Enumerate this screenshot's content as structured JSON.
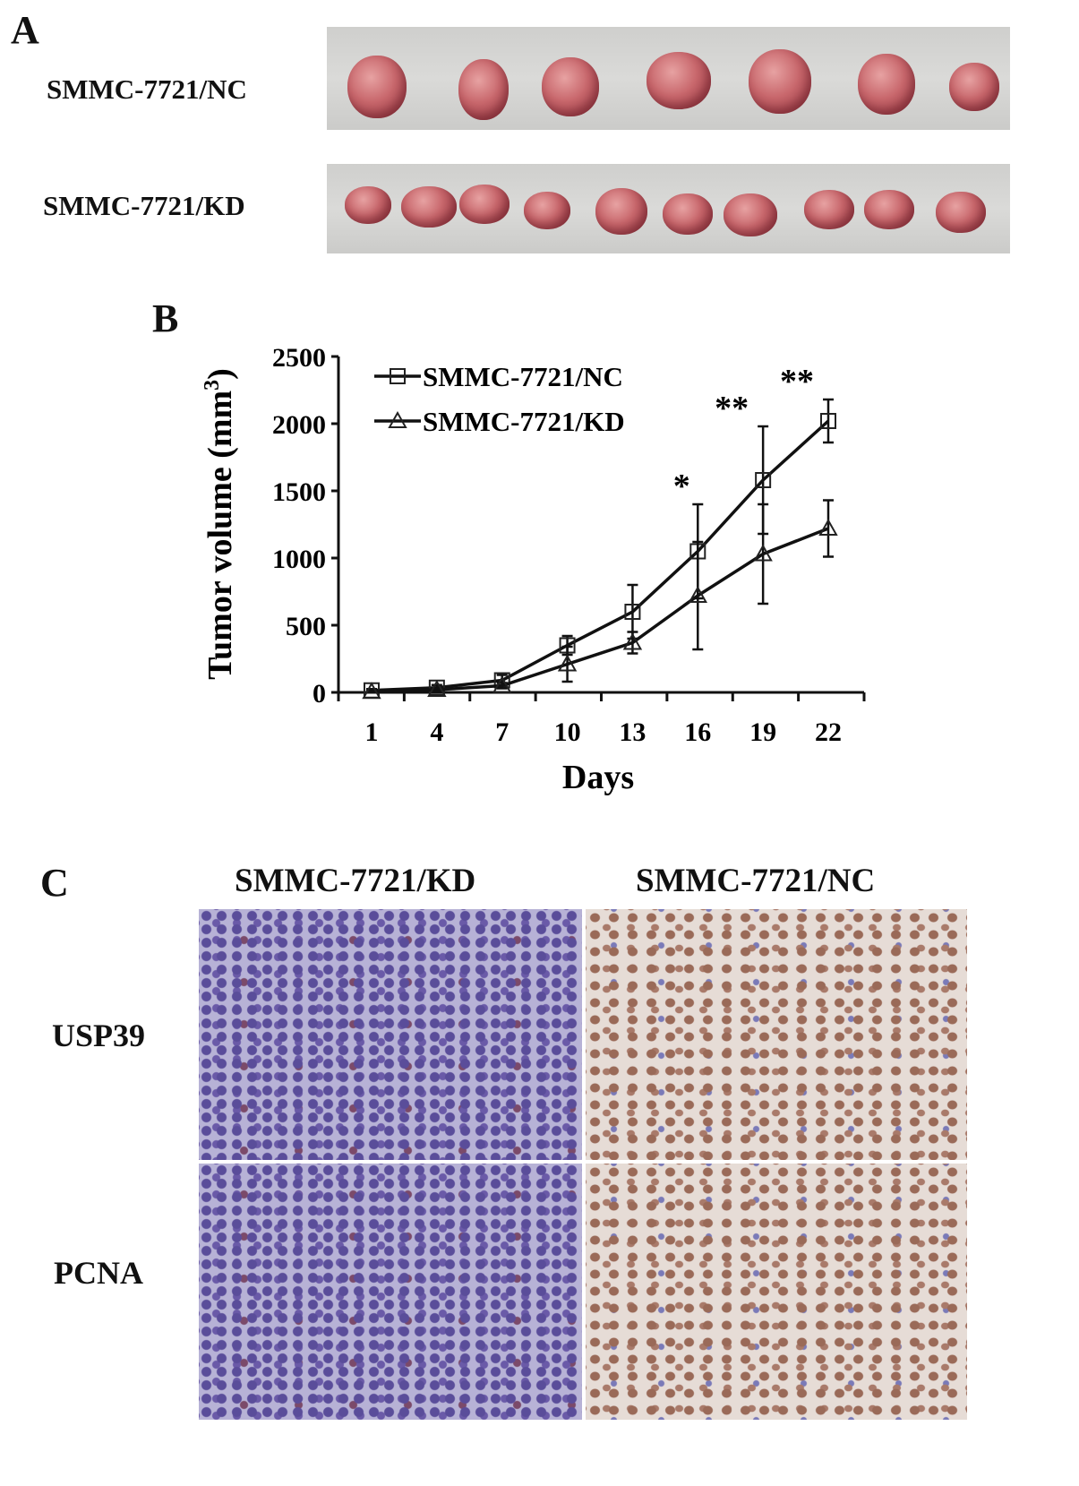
{
  "panels": {
    "a": {
      "label": "A",
      "rows": [
        "SMMC-7721/NC",
        "SMMC-7721/KD"
      ],
      "tumor_counts": [
        7,
        10
      ]
    },
    "b": {
      "label": "B"
    },
    "c": {
      "label": "C",
      "columns": [
        "SMMC-7721/KD",
        "SMMC-7721/NC"
      ],
      "rows": [
        "USP39",
        "PCNA"
      ]
    }
  },
  "chart_data": {
    "type": "line",
    "title": "",
    "xlabel": "Days",
    "ylabel": "Tumor volume (mm3)",
    "ylabel_main": "Tumor volume (mm",
    "ylabel_sup": "3",
    "ylabel_close": ")",
    "x": [
      1,
      4,
      7,
      10,
      13,
      16,
      19,
      22
    ],
    "xticks": [
      "1",
      "4",
      "7",
      "10",
      "13",
      "16",
      "19",
      "22"
    ],
    "ylim": [
      0,
      2500
    ],
    "yticks": [
      "0",
      "500",
      "1000",
      "1500",
      "2000",
      "2500"
    ],
    "grid": false,
    "legend_position": "top-left",
    "series": [
      {
        "name": "SMMC-7721/NC",
        "marker": "square",
        "values": [
          15,
          35,
          90,
          350,
          600,
          1050,
          1580,
          2020
        ],
        "errors": [
          10,
          20,
          40,
          70,
          200,
          350,
          400,
          160
        ]
      },
      {
        "name": "SMMC-7721/KD",
        "marker": "triangle",
        "values": [
          5,
          20,
          50,
          210,
          370,
          720,
          1030,
          1220
        ],
        "errors": [
          5,
          10,
          20,
          130,
          80,
          400,
          370,
          210
        ]
      }
    ],
    "annotations": [
      {
        "x": 16,
        "text": "*"
      },
      {
        "x": 19,
        "text": "**"
      },
      {
        "x": 22,
        "text": "**"
      }
    ]
  }
}
